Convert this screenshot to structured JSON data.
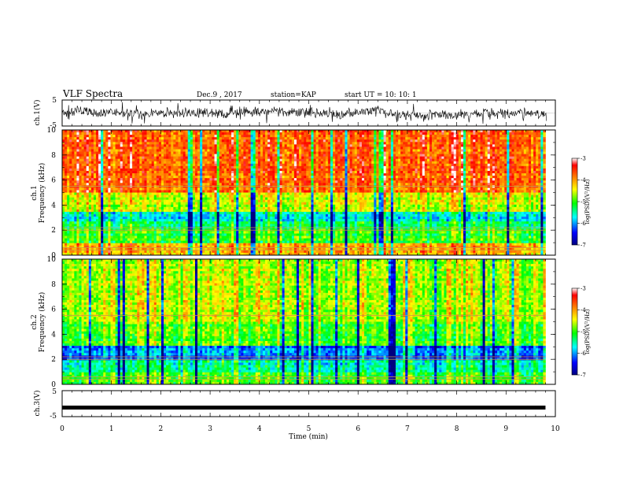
{
  "header": {
    "title": "VLF Spectra",
    "date": "Dec.9 , 2017",
    "station": "station=KAP",
    "start": "start UT = 10: 10: 1"
  },
  "chart_data": {
    "type": "heatmap",
    "x_axis": {
      "label": "Time (min)",
      "range": [
        0,
        10
      ],
      "ticks": [
        "0",
        "1",
        "2",
        "3",
        "4",
        "5",
        "6",
        "7",
        "8",
        "9",
        "10"
      ]
    },
    "panels": [
      {
        "kind": "waveform",
        "ylabel": "ch.1(V)",
        "ylim": [
          -5,
          5
        ],
        "ticks": [
          "5",
          "-5"
        ],
        "amplitude_typical": 1.5
      },
      {
        "kind": "spectrogram",
        "ylabel_ch": "ch.1",
        "ylabel": "Frequency (kHz)",
        "ylim": [
          0,
          10
        ],
        "ticks": [
          "0",
          "2",
          "4",
          "6",
          "8",
          "10"
        ],
        "data_end_min": 9.8,
        "approx_log_psd_by_band": [
          {
            "f": [
              0,
              1.0
            ],
            "v": -4.2
          },
          {
            "f": [
              1.0,
              2.2
            ],
            "v": -5.1
          },
          {
            "f": [
              2.2,
              2.6
            ],
            "v": -5.3
          },
          {
            "f": [
              2.6,
              3.5
            ],
            "v": -5.7
          },
          {
            "f": [
              3.5,
              5.0
            ],
            "v": -4.6
          },
          {
            "f": [
              5.0,
              10.0
            ],
            "v": -3.8
          }
        ],
        "colorbar": {
          "label": "log(PSD)(V²/Hz)",
          "ticks": [
            "-3",
            "-4",
            "-5",
            "-6",
            "-7"
          ],
          "range": [
            -7,
            -3
          ]
        }
      },
      {
        "kind": "spectrogram",
        "ylabel_ch": "ch.2",
        "ylabel": "Frequency (kHz)",
        "ylim": [
          0,
          10
        ],
        "ticks": [
          "0",
          "2",
          "4",
          "6",
          "8",
          "10"
        ],
        "data_end_min": 9.8,
        "approx_log_psd_by_band": [
          {
            "f": [
              0,
              1.0
            ],
            "v": -5.0
          },
          {
            "f": [
              1.0,
              2.0
            ],
            "v": -5.6
          },
          {
            "f": [
              2.0,
              3.0
            ],
            "v": -6.2
          },
          {
            "f": [
              3.0,
              5.0
            ],
            "v": -5.0
          },
          {
            "f": [
              5.0,
              10.0
            ],
            "v": -4.7
          }
        ],
        "colorbar": {
          "label": "log(PSD)(V²/Hz)",
          "ticks": [
            "-3",
            "-4",
            "-5",
            "-6",
            "-7"
          ],
          "range": [
            -7,
            -3
          ]
        }
      },
      {
        "kind": "waveform",
        "ylabel": "ch.3(V)",
        "ylim": [
          -5,
          5
        ],
        "ticks": [
          "5",
          "-5"
        ],
        "constant_value": -1.5
      }
    ],
    "colors": {
      "scale": [
        "#000080",
        "#0000ff",
        "#00ffff",
        "#00ff00",
        "#ffff00",
        "#ff8000",
        "#ff0000",
        "#ffffff"
      ]
    }
  }
}
